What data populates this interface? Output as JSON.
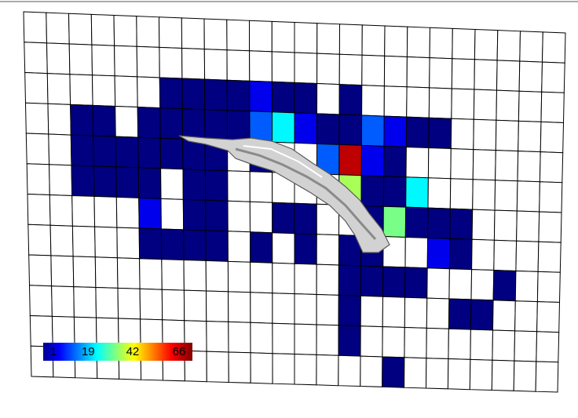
{
  "map": {
    "grid": [
      [
        null,
        null,
        null,
        null,
        null,
        null,
        null,
        null,
        null,
        null,
        null,
        null,
        null,
        null,
        null,
        null,
        null,
        null,
        null,
        null,
        null,
        null,
        null,
        null
      ],
      [
        null,
        null,
        null,
        null,
        null,
        null,
        null,
        null,
        null,
        null,
        null,
        null,
        null,
        null,
        null,
        null,
        null,
        null,
        null,
        null,
        null,
        null,
        null,
        null
      ],
      [
        null,
        null,
        null,
        null,
        null,
        null,
        1,
        1,
        1,
        1,
        8,
        1,
        1,
        null,
        1,
        null,
        null,
        null,
        null,
        null,
        null,
        null,
        null,
        null
      ],
      [
        null,
        null,
        1,
        1,
        null,
        1,
        1,
        1,
        1,
        1,
        15,
        25,
        8,
        1,
        1,
        15,
        8,
        1,
        1,
        null,
        null,
        null,
        null,
        null
      ],
      [
        null,
        null,
        1,
        1,
        1,
        1,
        1,
        1,
        1,
        null,
        1,
        null,
        null,
        15,
        62,
        8,
        1,
        null,
        null,
        null,
        null,
        null,
        null,
        null
      ],
      [
        null,
        null,
        1,
        1,
        1,
        1,
        null,
        1,
        1,
        null,
        null,
        null,
        null,
        null,
        36,
        1,
        1,
        25,
        null,
        null,
        null,
        null,
        null,
        null
      ],
      [
        null,
        null,
        null,
        null,
        null,
        8,
        null,
        1,
        1,
        null,
        null,
        1,
        1,
        null,
        null,
        1,
        33,
        1,
        1,
        1,
        null,
        null,
        null,
        null
      ],
      [
        null,
        null,
        null,
        null,
        null,
        1,
        1,
        1,
        1,
        null,
        1,
        null,
        1,
        null,
        1,
        1,
        null,
        null,
        8,
        1,
        null,
        null,
        null,
        null
      ],
      [
        null,
        null,
        null,
        null,
        null,
        null,
        null,
        null,
        null,
        null,
        null,
        null,
        null,
        null,
        1,
        1,
        1,
        1,
        null,
        null,
        null,
        1,
        null,
        null
      ],
      [
        null,
        null,
        null,
        null,
        null,
        null,
        null,
        null,
        null,
        null,
        null,
        null,
        null,
        null,
        1,
        null,
        null,
        null,
        null,
        1,
        1,
        null,
        null,
        null
      ],
      [
        null,
        null,
        null,
        null,
        null,
        null,
        null,
        null,
        null,
        null,
        null,
        null,
        null,
        null,
        1,
        null,
        null,
        null,
        null,
        null,
        null,
        null,
        null,
        null
      ],
      [
        null,
        null,
        null,
        null,
        null,
        null,
        null,
        null,
        null,
        null,
        null,
        null,
        null,
        null,
        null,
        null,
        1,
        null,
        null,
        null,
        null,
        null,
        null,
        null
      ]
    ],
    "colorbar": {
      "range": [
        1,
        66
      ],
      "ticks": [
        1,
        19,
        42,
        66
      ]
    }
  }
}
